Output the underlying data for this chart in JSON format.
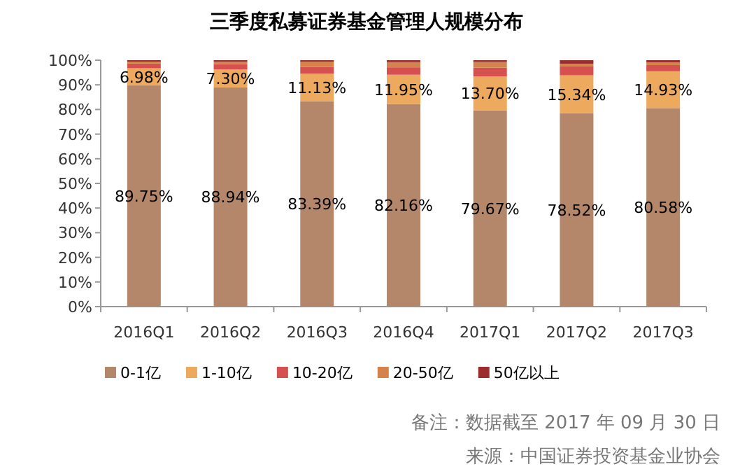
{
  "chart_data": {
    "type": "bar",
    "stacked": true,
    "title": "三季度私募证券基金管理人规模分布",
    "categories": [
      "2016Q1",
      "2016Q2",
      "2016Q3",
      "2016Q4",
      "2017Q1",
      "2017Q2",
      "2017Q3"
    ],
    "series": [
      {
        "name": "0-1亿",
        "color": "#b5876a",
        "values": [
          89.75,
          88.94,
          83.39,
          82.16,
          79.67,
          78.52,
          80.58
        ],
        "value_labels": [
          "89.75%",
          "88.94%",
          "83.39%",
          "82.16%",
          "79.67%",
          "78.52%",
          "80.58%"
        ]
      },
      {
        "name": "1-10亿",
        "color": "#edaa5e",
        "values": [
          6.98,
          7.3,
          11.13,
          11.95,
          13.7,
          15.34,
          14.93
        ],
        "value_labels": [
          "6.98%",
          "7.30%",
          "11.13%",
          "11.95%",
          "13.70%",
          "15.34%",
          "14.93%"
        ]
      },
      {
        "name": "10-20亿",
        "color": "#d65050",
        "values": [
          1.9,
          2.2,
          2.8,
          3.0,
          3.6,
          3.6,
          2.5
        ]
      },
      {
        "name": "20-50亿",
        "color": "#d4844a",
        "values": [
          0.8,
          0.9,
          2.1,
          2.1,
          2.3,
          1.1,
          1.1
        ]
      },
      {
        "name": "50亿以上",
        "color": "#9b2d2d",
        "values": [
          0.57,
          0.66,
          0.58,
          0.79,
          0.73,
          1.44,
          0.89
        ]
      }
    ],
    "ylim": [
      0,
      100
    ],
    "yticks": [
      {
        "value": 0,
        "label": "0%"
      },
      {
        "value": 10,
        "label": "10%"
      },
      {
        "value": 20,
        "label": "20%"
      },
      {
        "value": 30,
        "label": "30%"
      },
      {
        "value": 40,
        "label": "40%"
      },
      {
        "value": 50,
        "label": "50%"
      },
      {
        "value": 60,
        "label": "60%"
      },
      {
        "value": 70,
        "label": "70%"
      },
      {
        "value": 80,
        "label": "80%"
      },
      {
        "value": 90,
        "label": "90%"
      },
      {
        "value": 100,
        "label": "100%"
      }
    ],
    "grid": false,
    "legend": "bottom",
    "annotations": [
      "备注：数据截至 2017 年 09 月 30 日",
      "来源：中国证券投资基金业协会"
    ]
  }
}
